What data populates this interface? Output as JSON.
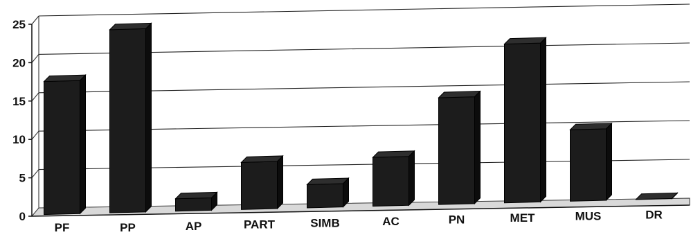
{
  "chart_data": {
    "type": "bar",
    "categories": [
      "PF",
      "PP",
      "AP",
      "PART",
      "SIMB",
      "AC",
      "PN",
      "MET",
      "MUS",
      "DR"
    ],
    "values": [
      17.5,
      24,
      1.8,
      6.3,
      3.2,
      6.5,
      14,
      20.7,
      9.4,
      0.2
    ],
    "ylim": [
      0,
      25
    ],
    "yticks": [
      0,
      5,
      10,
      15,
      20,
      25
    ],
    "title": "",
    "xlabel": "",
    "ylabel": "",
    "grid": true,
    "legend": "none",
    "style": "3d-bar",
    "colors": {
      "bar": "#1c1c1c",
      "floor": "#d9d9d9",
      "grid": "#222222",
      "axis": "#111111"
    }
  }
}
